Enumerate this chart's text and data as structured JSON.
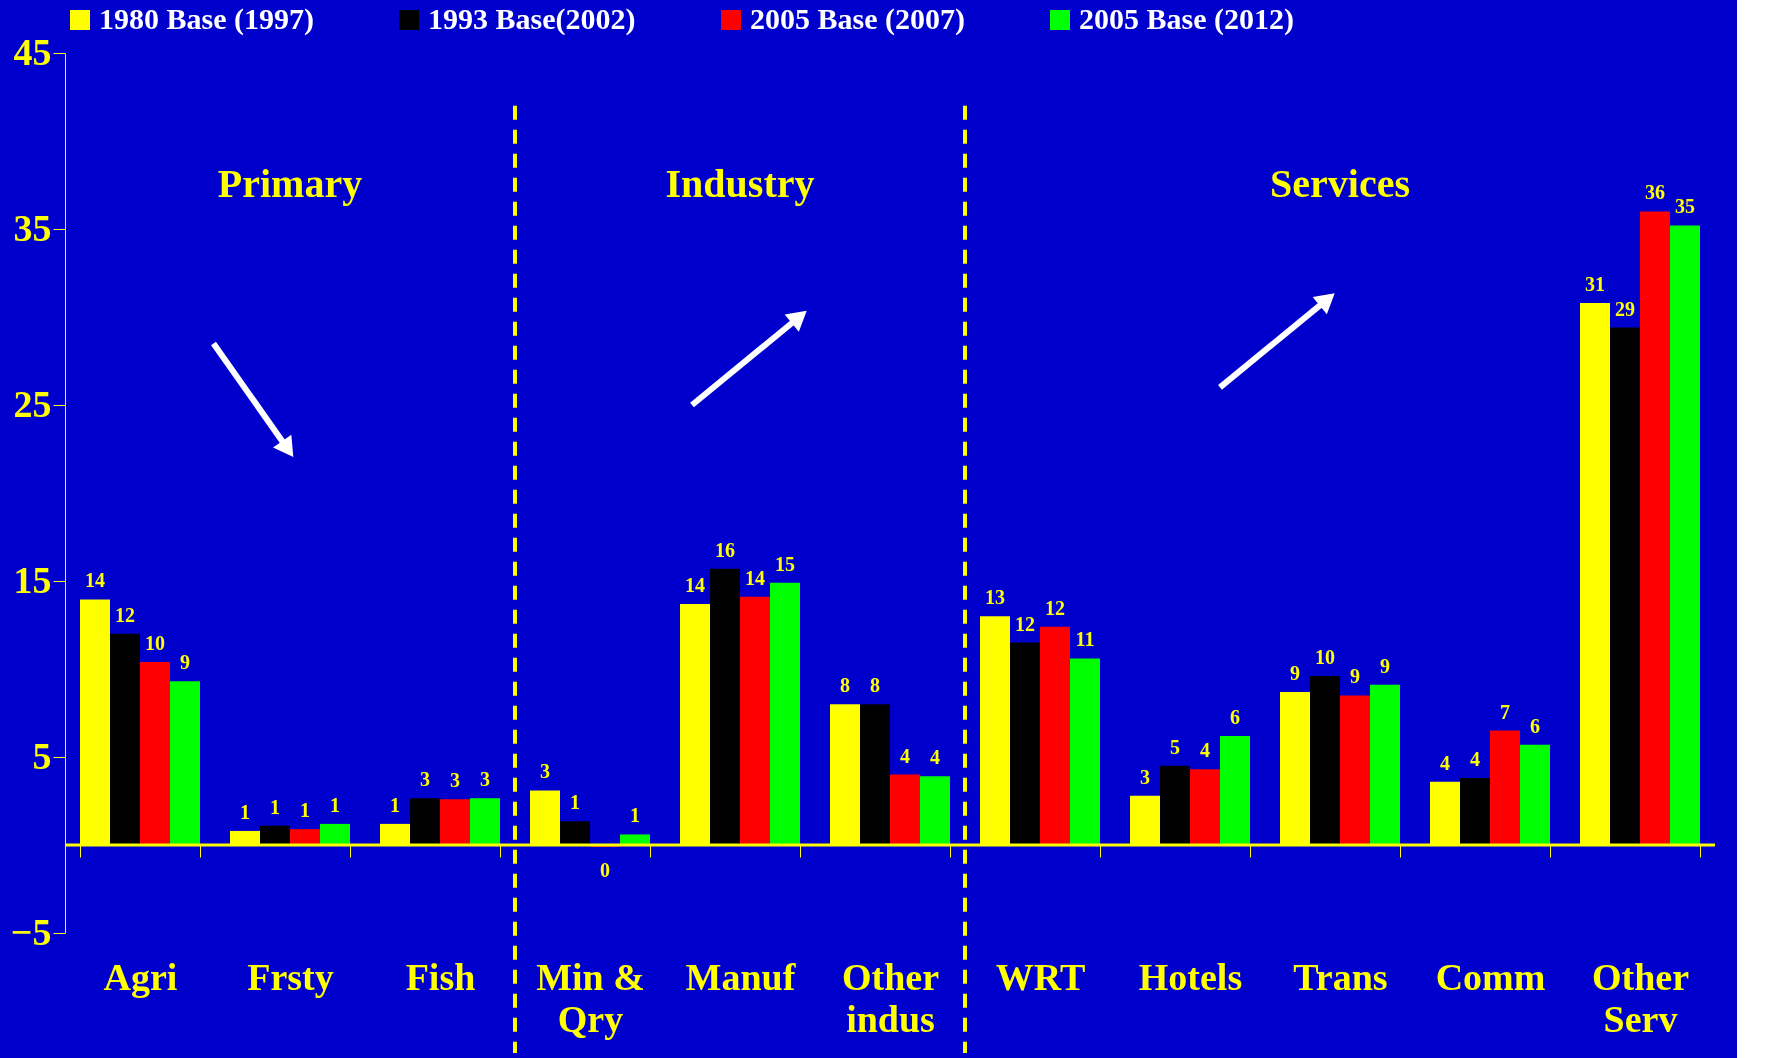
{
  "chart_data": {
    "type": "bar",
    "categories": [
      "Agri",
      "Frsty",
      "Fish",
      "Min & Qry",
      "Manuf",
      "Other indus",
      "WRT",
      "Hotels",
      "Trans",
      "Comm",
      "Other Serv"
    ],
    "series": [
      {
        "name": "1980 Base (1997)",
        "color": "#ffff00",
        "values": [
          13.95,
          0.8,
          1.2,
          3.1,
          13.7,
          8.0,
          13.0,
          2.8,
          8.7,
          3.6,
          30.8
        ],
        "value_labels": [
          "14",
          "1",
          "1",
          "3",
          "14",
          "8",
          "13",
          "3",
          "9",
          "4",
          "31"
        ]
      },
      {
        "name": "1993 Base(2002)",
        "color": "#000000",
        "values": [
          12.0,
          1.1,
          2.65,
          1.35,
          15.7,
          8.0,
          11.5,
          4.5,
          9.6,
          3.8,
          29.4
        ],
        "value_labels": [
          "12",
          "1",
          "3",
          "1",
          "16",
          "8",
          "12",
          "5",
          "10",
          "4",
          "29"
        ]
      },
      {
        "name": "2005 Base (2007)",
        "color": "#ff0000",
        "values": [
          10.4,
          0.9,
          2.6,
          -0.1,
          14.1,
          4.0,
          12.4,
          4.3,
          8.5,
          6.5,
          36.0
        ],
        "value_labels": [
          "10",
          "1",
          "3",
          "0",
          "14",
          "4",
          "12",
          "4",
          "9",
          "7",
          "36"
        ]
      },
      {
        "name": "2005 Base (2012)",
        "color": "#00ff00",
        "values": [
          9.3,
          1.2,
          2.65,
          0.6,
          14.9,
          3.9,
          10.6,
          6.2,
          9.1,
          5.7,
          35.2
        ],
        "value_labels": [
          "9",
          "1",
          "3",
          "1",
          "15",
          "4",
          "11",
          "6",
          "9",
          "6",
          "35"
        ]
      }
    ],
    "ylim": [
      -5,
      45
    ],
    "yticks": [
      -5,
      5,
      15,
      25,
      35,
      45
    ],
    "grid": false,
    "legend": "top",
    "ref_lines": [
      {
        "axis": "y",
        "value": 0,
        "color": "#ffff00"
      }
    ],
    "annotations": [
      "Primary",
      "Industry",
      "Services"
    ]
  }
}
